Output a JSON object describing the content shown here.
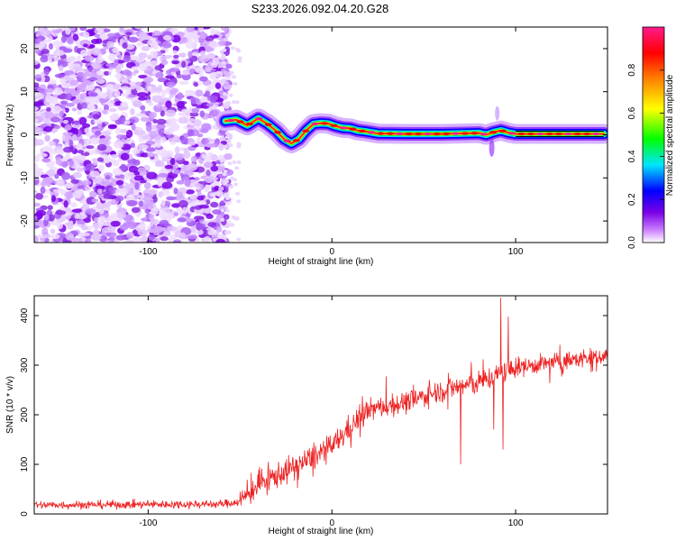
{
  "title": "S233.2026.092.04.20.G28",
  "chart_data": [
    {
      "type": "heatmap",
      "title": "S233.2026.092.04.20.G28",
      "xlabel": "Height of straight line (km)",
      "ylabel": "Frequency (Hz)",
      "xlim": [
        -162,
        150
      ],
      "ylim": [
        -25,
        25
      ],
      "xticks": [
        -100,
        0,
        100
      ],
      "yticks": [
        -20,
        -10,
        0,
        10,
        20
      ],
      "colorbar": {
        "label": "Normalized spectral amplitude",
        "range": [
          0,
          1
        ],
        "ticks": [
          "0.0",
          "0.2",
          "0.4",
          "0.6",
          "0.8"
        ],
        "colors": [
          "#ffffff",
          "#c97cff",
          "#7a00e6",
          "#0000ff",
          "#00e5ff",
          "#00ff00",
          "#ffff00",
          "#ff8000",
          "#ff0000",
          "#ff1a8c"
        ]
      },
      "noise_region_x": [
        -162,
        -60
      ],
      "ridge": {
        "x": [
          -58,
          -52,
          -46,
          -40,
          -35,
          -30,
          -26,
          -22,
          -18,
          -14,
          -10,
          -6,
          -2,
          2,
          6,
          10,
          14,
          18,
          25,
          40,
          60,
          80,
          84,
          88,
          92,
          96,
          100,
          120,
          148
        ],
        "freq": [
          3.2,
          3.5,
          2.2,
          3.8,
          2.5,
          0.8,
          -1.0,
          -2.0,
          -1.0,
          1.0,
          2.5,
          2.7,
          2.6,
          2.0,
          1.6,
          1.5,
          1.0,
          0.8,
          0.3,
          0.2,
          0.2,
          0.4,
          0.0,
          0.6,
          1.0,
          0.5,
          0.2,
          0.2,
          0.2
        ]
      }
    },
    {
      "type": "line",
      "xlabel": "Height of straight line (km)",
      "ylabel": "SNR (10 * v/v)",
      "xlim": [
        -162,
        150
      ],
      "ylim": [
        0,
        440
      ],
      "xticks": [
        -100,
        0,
        100
      ],
      "yticks": [
        0,
        100,
        200,
        300,
        400
      ],
      "series": [
        {
          "name": "SNR",
          "color": "#ee2222",
          "trend": {
            "x": [
              -162,
              -60,
              -50,
              -40,
              -20,
              0,
              10,
              20,
              40,
              60,
              80,
              90,
              100,
              120,
              150
            ],
            "y": [
              18,
              20,
              25,
              60,
              95,
              135,
              175,
              210,
              225,
              250,
              265,
              280,
              295,
              305,
              320
            ]
          },
          "spikes": [
            {
              "x": 70,
              "y": 100
            },
            {
              "x": 92,
              "y": 436
            },
            {
              "x": 93,
              "y": 130
            },
            {
              "x": 96,
              "y": 398
            },
            {
              "x": 88,
              "y": 170
            }
          ]
        }
      ]
    }
  ]
}
